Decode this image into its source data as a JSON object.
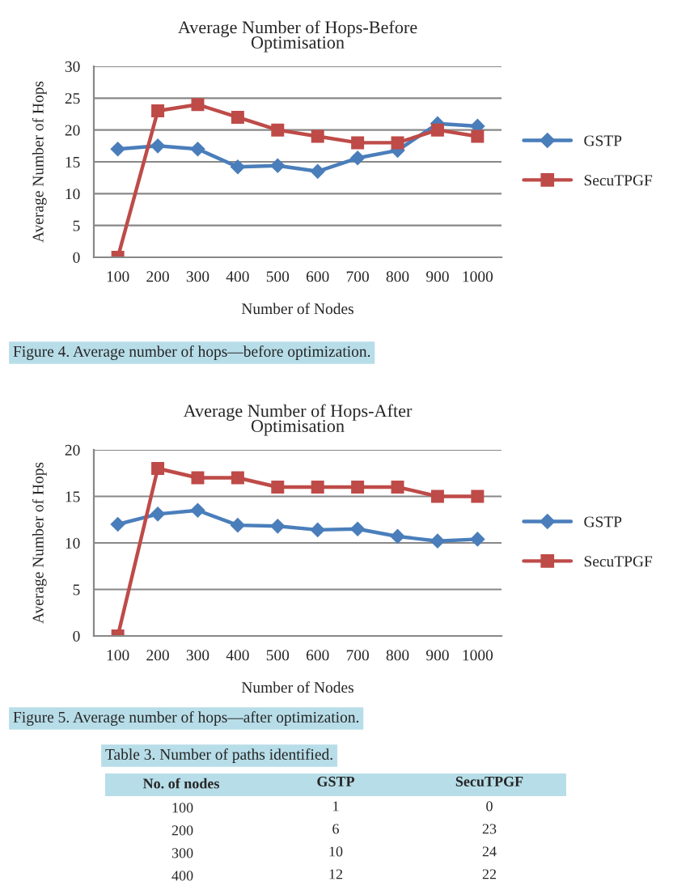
{
  "chart_data": [
    {
      "type": "line",
      "title": "Average Number of Hops-Before\nOptimisation",
      "xlabel": "Number of Nodes",
      "ylabel": "Average Number of Hops",
      "categories": [
        "100",
        "200",
        "300",
        "400",
        "500",
        "600",
        "700",
        "800",
        "900",
        "1000"
      ],
      "series": [
        {
          "name": "GSTP",
          "color": "#4a7ebb",
          "marker": "diamond",
          "values": [
            17,
            17.5,
            17,
            14.2,
            14.4,
            13.5,
            15.6,
            16.8,
            21,
            20.6
          ]
        },
        {
          "name": "SecuTPGF",
          "color": "#be4b48",
          "marker": "square",
          "values": [
            0,
            23,
            24,
            22,
            20,
            19,
            18,
            18,
            20,
            19
          ]
        }
      ],
      "ylim": [
        0,
        30
      ],
      "yticks": [
        0,
        5,
        10,
        15,
        20,
        25,
        30
      ],
      "grid": "y",
      "legend": "right",
      "annotations": [
        "Figure 4. Average number of hops—before optimization."
      ]
    },
    {
      "type": "line",
      "title": "Average Number of Hops-After\nOptimisation",
      "xlabel": "Number of Nodes",
      "ylabel": "Average Number of Hops",
      "categories": [
        "100",
        "200",
        "300",
        "400",
        "500",
        "600",
        "700",
        "800",
        "900",
        "1000"
      ],
      "series": [
        {
          "name": "GSTP",
          "color": "#4a7ebb",
          "marker": "diamond",
          "values": [
            12,
            13.1,
            13.5,
            11.9,
            11.8,
            11.4,
            11.5,
            10.7,
            10.2,
            10.4
          ]
        },
        {
          "name": "SecuTPGF",
          "color": "#be4b48",
          "marker": "square",
          "values": [
            0,
            18,
            17,
            17,
            16,
            16,
            16,
            16,
            15,
            15
          ]
        }
      ],
      "ylim": [
        0,
        20
      ],
      "yticks": [
        0,
        5,
        10,
        15,
        20
      ],
      "grid": "y",
      "legend": "right",
      "annotations": [
        "Figure 5. Average number of hops—after optimization."
      ]
    },
    {
      "type": "heatmap",
      "title": "Table 3. Number of paths identified.",
      "ylabel": "No. of nodes",
      "categories": [
        "GSTP",
        "SecuTPGF"
      ],
      "y_categories": [
        "100",
        "200",
        "300",
        "400"
      ],
      "cells": [
        [
          1,
          0
        ],
        [
          6,
          23
        ],
        [
          10,
          24
        ],
        [
          12,
          22
        ]
      ],
      "data_labels": true
    }
  ]
}
